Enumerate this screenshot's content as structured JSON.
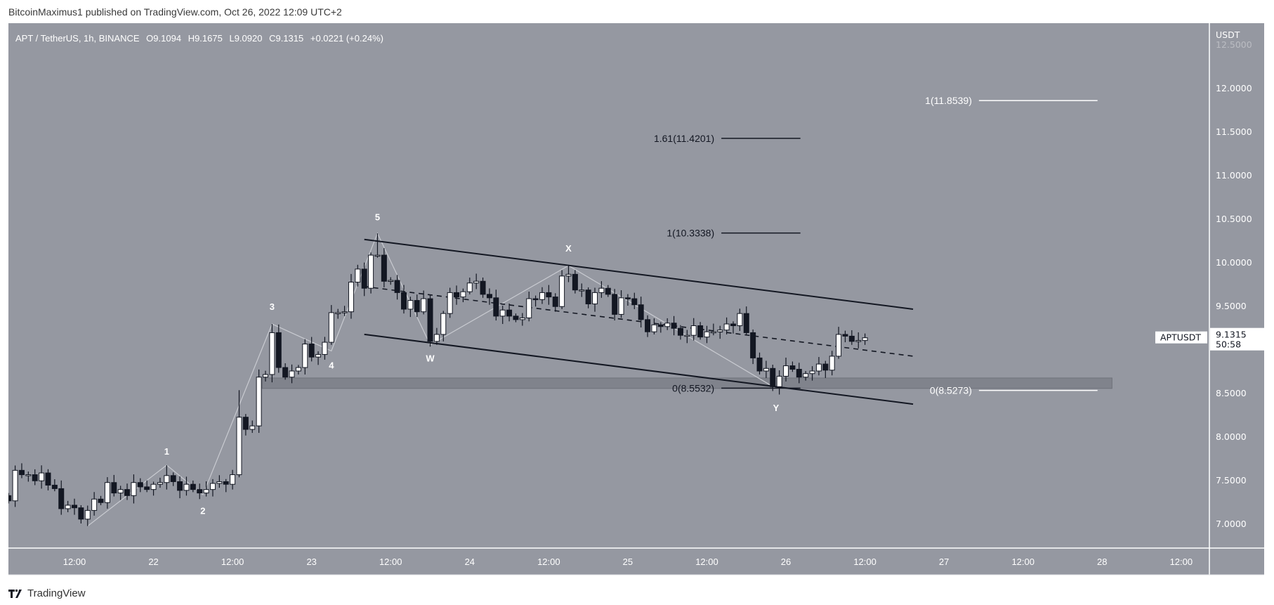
{
  "header": {
    "published": "BitcoinMaximus1 published on TradingView.com, Oct 26, 2022 12:09 UTC+2"
  },
  "legend": {
    "symbol": "APT / TetherUS, 1h, BINANCE",
    "o_label": "O",
    "o": "9.1094",
    "h_label": "H",
    "h": "9.1675",
    "l_label": "L",
    "l": "9.0920",
    "c_label": "C",
    "c": "9.1315",
    "change": "+0.0221 (+0.24%)"
  },
  "price_axis": {
    "currency": "USDT",
    "ticks": [
      "12.5000",
      "12.0000",
      "11.5000",
      "11.0000",
      "10.5000",
      "10.0000",
      "9.5000",
      "8.5000",
      "8.0000",
      "7.5000",
      "7.0000"
    ],
    "tick_values": [
      12.5,
      12.0,
      11.5,
      11.0,
      10.5,
      10.0,
      9.5,
      8.5,
      8.0,
      7.5,
      7.0
    ]
  },
  "last_price": {
    "symbol": "APTUSDT",
    "price": "9.1315",
    "countdown": "50:58",
    "value": 9.1315
  },
  "time_axis": {
    "labels": [
      "12:00",
      "22",
      "12:00",
      "23",
      "12:00",
      "24",
      "12:00",
      "25",
      "12:00",
      "26",
      "12:00",
      "27",
      "12:00",
      "28",
      "12:00"
    ],
    "hours": [
      0,
      12,
      24,
      36,
      48,
      60,
      72,
      84,
      96,
      108,
      120,
      132,
      144,
      156,
      168
    ]
  },
  "footer": {
    "brand": "TradingView"
  },
  "colors": {
    "pane": "#9598a1",
    "up_body": "#ffffff",
    "down_body": "#131722",
    "wave_line": "#c9cbd1",
    "zone": "#7c7f88"
  },
  "chart_data": {
    "type": "candlestick",
    "title": "APT / TetherUS, 1h, BINANCE",
    "x_unit": "hours since Oct 21 12:00",
    "first_candle_hour": -10,
    "first_open": 7.32,
    "closes": [
      7.26,
      7.61,
      7.56,
      7.56,
      7.49,
      7.58,
      7.44,
      7.4,
      7.17,
      7.21,
      7.18,
      7.05,
      7.15,
      7.28,
      7.24,
      7.47,
      7.35,
      7.39,
      7.32,
      7.47,
      7.42,
      7.39,
      7.45,
      7.47,
      7.55,
      7.48,
      7.38,
      7.45,
      7.39,
      7.35,
      7.39,
      7.46,
      7.48,
      7.45,
      7.56,
      8.22,
      8.08,
      8.12,
      8.68,
      8.71,
      9.19,
      8.79,
      8.68,
      8.75,
      8.79,
      9.06,
      8.91,
      8.94,
      9.08,
      9.42,
      9.42,
      9.43,
      9.77,
      9.92,
      9.7,
      10.08,
      10.08,
      9.78,
      9.79,
      9.65,
      9.46,
      9.56,
      9.43,
      9.58,
      9.09,
      9.17,
      9.41,
      9.65,
      9.6,
      9.66,
      9.76,
      9.78,
      9.63,
      9.59,
      9.38,
      9.45,
      9.38,
      9.34,
      9.36,
      9.58,
      9.57,
      9.65,
      9.6,
      9.49,
      9.84,
      9.86,
      9.68,
      9.68,
      9.52,
      9.65,
      9.7,
      9.63,
      9.4,
      9.59,
      9.58,
      9.51,
      9.34,
      9.2,
      9.28,
      9.26,
      9.3,
      9.24,
      9.16,
      9.16,
      9.27,
      9.14,
      9.2,
      9.2,
      9.22,
      9.29,
      9.27,
      9.41,
      9.19,
      8.9,
      8.75,
      8.78,
      8.57,
      8.69,
      8.81,
      8.77,
      8.68,
      8.72,
      8.75,
      8.83,
      8.76,
      8.92,
      9.17,
      9.15,
      9.09,
      9.1,
      9.1315
    ],
    "extreme_wicks": {
      "12": {
        "low": 6.97
      },
      "24": {
        "high": 7.67
      },
      "35": {
        "high": 8.53
      },
      "40": {
        "high": 9.29
      },
      "56": {
        "high": 10.33
      },
      "64": {
        "low": 9.03
      },
      "85": {
        "high": 9.96
      },
      "116": {
        "low": 8.52
      }
    },
    "ylim": [
      6.8,
      12.6
    ],
    "xlim_hours": [
      -11,
      171
    ],
    "waves": [
      {
        "label": "1",
        "hour": 14,
        "price": 7.67,
        "label_price": 7.83
      },
      {
        "label": "2",
        "hour": 19.5,
        "price": 7.33,
        "label_price": 7.15
      },
      {
        "label": "3",
        "hour": 30,
        "price": 9.29,
        "label_price": 9.49
      },
      {
        "label": "4",
        "hour": 39,
        "price": 8.98,
        "label_price": 8.82
      },
      {
        "label": "5",
        "hour": 46,
        "price": 10.33,
        "label_price": 10.52
      },
      {
        "label": "W",
        "hour": 54,
        "price": 9.05,
        "label_price": 8.9
      },
      {
        "label": "X",
        "hour": 75,
        "price": 9.96,
        "label_price": 10.16
      },
      {
        "label": "Y",
        "hour": 106.5,
        "price": 8.55,
        "label_price": 8.33
      }
    ],
    "wave_start": {
      "hour": 2,
      "price": 6.97
    },
    "channel": {
      "upper": [
        [
          44,
          10.26
        ],
        [
          127.3,
          9.46
        ]
      ],
      "middle": [
        [
          44,
          9.72
        ],
        [
          127.3,
          8.92
        ]
      ],
      "lower": [
        [
          44,
          9.17
        ],
        [
          127.3,
          8.37
        ]
      ]
    },
    "support_zone": {
      "from_hour": 28.5,
      "to_hour": 157.5,
      "low": 8.55,
      "high": 8.67
    },
    "fib_levels": [
      {
        "text": "1.61(11.4201)",
        "price": 11.4201,
        "from_hour": 98.2,
        "to_hour": 110.2,
        "color": "#131722"
      },
      {
        "text": "1(10.3338)",
        "price": 10.3338,
        "from_hour": 98.2,
        "to_hour": 110.2,
        "color": "#131722"
      },
      {
        "text": "0(8.5532)",
        "price": 8.5532,
        "from_hour": 98.2,
        "to_hour": 110.2,
        "color": "#131722"
      },
      {
        "text": "1(11.8539)",
        "price": 11.8539,
        "from_hour": 137.3,
        "to_hour": 155.3,
        "color": "#ffffff"
      },
      {
        "text": "0(8.5273)",
        "price": 8.5273,
        "from_hour": 137.3,
        "to_hour": 155.3,
        "color": "#ffffff"
      }
    ]
  }
}
